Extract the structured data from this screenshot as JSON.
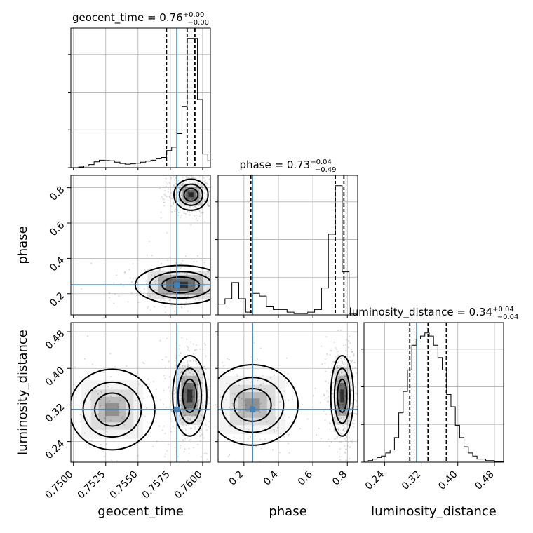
{
  "chart_data": {
    "type": "corner",
    "parameters": [
      "geocent_time",
      "phase",
      "luminosity_distance"
    ],
    "truths": {
      "geocent_time": 0.758,
      "phase": 0.25,
      "luminosity_distance": 0.31
    },
    "marginals": [
      {
        "parameter": "geocent_time",
        "title_text": "geocent_time = 0.76",
        "plus": "+0.00",
        "minus": "−0.00",
        "quantiles": [
          0.7572,
          0.7588,
          0.7594
        ],
        "bins": [
          0.75,
          0.7504,
          0.7508,
          0.7512,
          0.7516,
          0.752,
          0.7524,
          0.7528,
          0.7532,
          0.7536,
          0.754,
          0.7544,
          0.7548,
          0.7552,
          0.7556,
          0.756,
          0.7564,
          0.7568,
          0.7572,
          0.7576,
          0.758,
          0.7584,
          0.7588,
          0.7592,
          0.7596,
          0.76,
          0.7604,
          0.7608
        ],
        "counts": [
          0,
          0.2,
          0.5,
          0.9,
          1.7,
          2.2,
          2.1,
          2.0,
          1.6,
          1.2,
          1.0,
          1.1,
          1.3,
          1.6,
          1.9,
          2.2,
          2.6,
          3.0,
          5.0,
          6.0,
          10.0,
          18.0,
          38.0,
          38.0,
          20.0,
          4.0,
          2.0
        ],
        "xlim": [
          0.7498,
          0.7606
        ]
      },
      {
        "parameter": "phase",
        "title_text": "phase = 0.73",
        "plus": "+0.04",
        "minus": "−0.49",
        "quantiles": [
          0.24,
          0.73,
          0.78
        ],
        "bins": [
          0.05,
          0.09,
          0.13,
          0.17,
          0.21,
          0.25,
          0.29,
          0.33,
          0.37,
          0.41,
          0.45,
          0.49,
          0.53,
          0.57,
          0.61,
          0.65,
          0.69,
          0.73,
          0.77,
          0.81,
          0.85
        ],
        "counts": [
          4.0,
          6.0,
          12.0,
          6.0,
          1.0,
          8.0,
          7.0,
          3.0,
          2.0,
          2.0,
          1.0,
          0.5,
          0.5,
          1.0,
          2.0,
          10.0,
          30.0,
          48.0,
          16.0,
          0.5
        ],
        "xlim": [
          0.05,
          0.86
        ]
      },
      {
        "parameter": "luminosity_distance",
        "title_text": "luminosity_distance = 0.34",
        "plus": "+0.04",
        "minus": "−0.04",
        "quantiles": [
          0.295,
          0.335,
          0.375
        ],
        "bins": [
          0.195,
          0.2045,
          0.214,
          0.2235,
          0.233,
          0.2425,
          0.252,
          0.2615,
          0.271,
          0.2805,
          0.29,
          0.2995,
          0.309,
          0.3185,
          0.328,
          0.3375,
          0.347,
          0.3565,
          0.366,
          0.3755,
          0.385,
          0.3945,
          0.404,
          0.4135,
          0.423,
          0.4325,
          0.442,
          0.4515,
          0.461,
          0.4705,
          0.48,
          0.4895,
          0.499
        ],
        "counts": [
          0.3,
          0.5,
          1.0,
          1.5,
          2.0,
          3.0,
          4.0,
          8.0,
          16.0,
          23.0,
          30.0,
          38.0,
          40.0,
          41.0,
          42.0,
          41.0,
          38.0,
          34.0,
          30.0,
          22.0,
          18.0,
          12.0,
          8.0,
          5.0,
          3.0,
          2.0,
          1.0,
          1.0,
          0.5,
          0.5,
          0.2,
          0.1
        ],
        "xlim": [
          0.195,
          0.5
        ]
      }
    ],
    "axes": {
      "geocent_time": {
        "label": "geocent_time",
        "ticks": [
          0.75,
          0.7525,
          0.755,
          0.7575,
          0.76
        ],
        "tick_labels": [
          "0.7500",
          "0.7525",
          "0.7550",
          "0.7575",
          "0.7600"
        ]
      },
      "phase": {
        "label": "phase",
        "ticks": [
          0.2,
          0.4,
          0.6,
          0.8
        ],
        "tick_labels": [
          "0.2",
          "0.4",
          "0.6",
          "0.8"
        ]
      },
      "luminosity_distance": {
        "label": "luminosity_distance",
        "ticks": [
          0.24,
          0.32,
          0.4,
          0.48
        ],
        "tick_labels": [
          "0.24",
          "0.32",
          "0.40",
          "0.48"
        ]
      }
    },
    "ylims": {
      "phase": [
        0.08,
        0.87
      ],
      "luminosity_distance": [
        0.195,
        0.5
      ]
    },
    "posterior_modes": [
      {
        "panel": "geocent_time-phase",
        "modes": [
          {
            "x": 0.7591,
            "y": 0.76,
            "sx": 0.0006,
            "sy": 0.04,
            "w": 1.0
          },
          {
            "x": 0.7583,
            "y": 0.25,
            "sx": 0.0016,
            "sy": 0.05,
            "w": 0.6
          }
        ]
      },
      {
        "panel": "geocent_time-luminosity_distance",
        "modes": [
          {
            "x": 0.759,
            "y": 0.34,
            "sx": 0.0006,
            "sy": 0.04,
            "w": 1.0
          },
          {
            "x": 0.753,
            "y": 0.31,
            "sx": 0.0015,
            "sy": 0.04,
            "w": 0.25
          }
        ]
      },
      {
        "panel": "phase-luminosity_distance",
        "modes": [
          {
            "x": 0.77,
            "y": 0.34,
            "sx": 0.03,
            "sy": 0.04,
            "w": 1.0
          },
          {
            "x": 0.25,
            "y": 0.32,
            "sx": 0.12,
            "sy": 0.04,
            "w": 0.4
          }
        ]
      }
    ]
  }
}
